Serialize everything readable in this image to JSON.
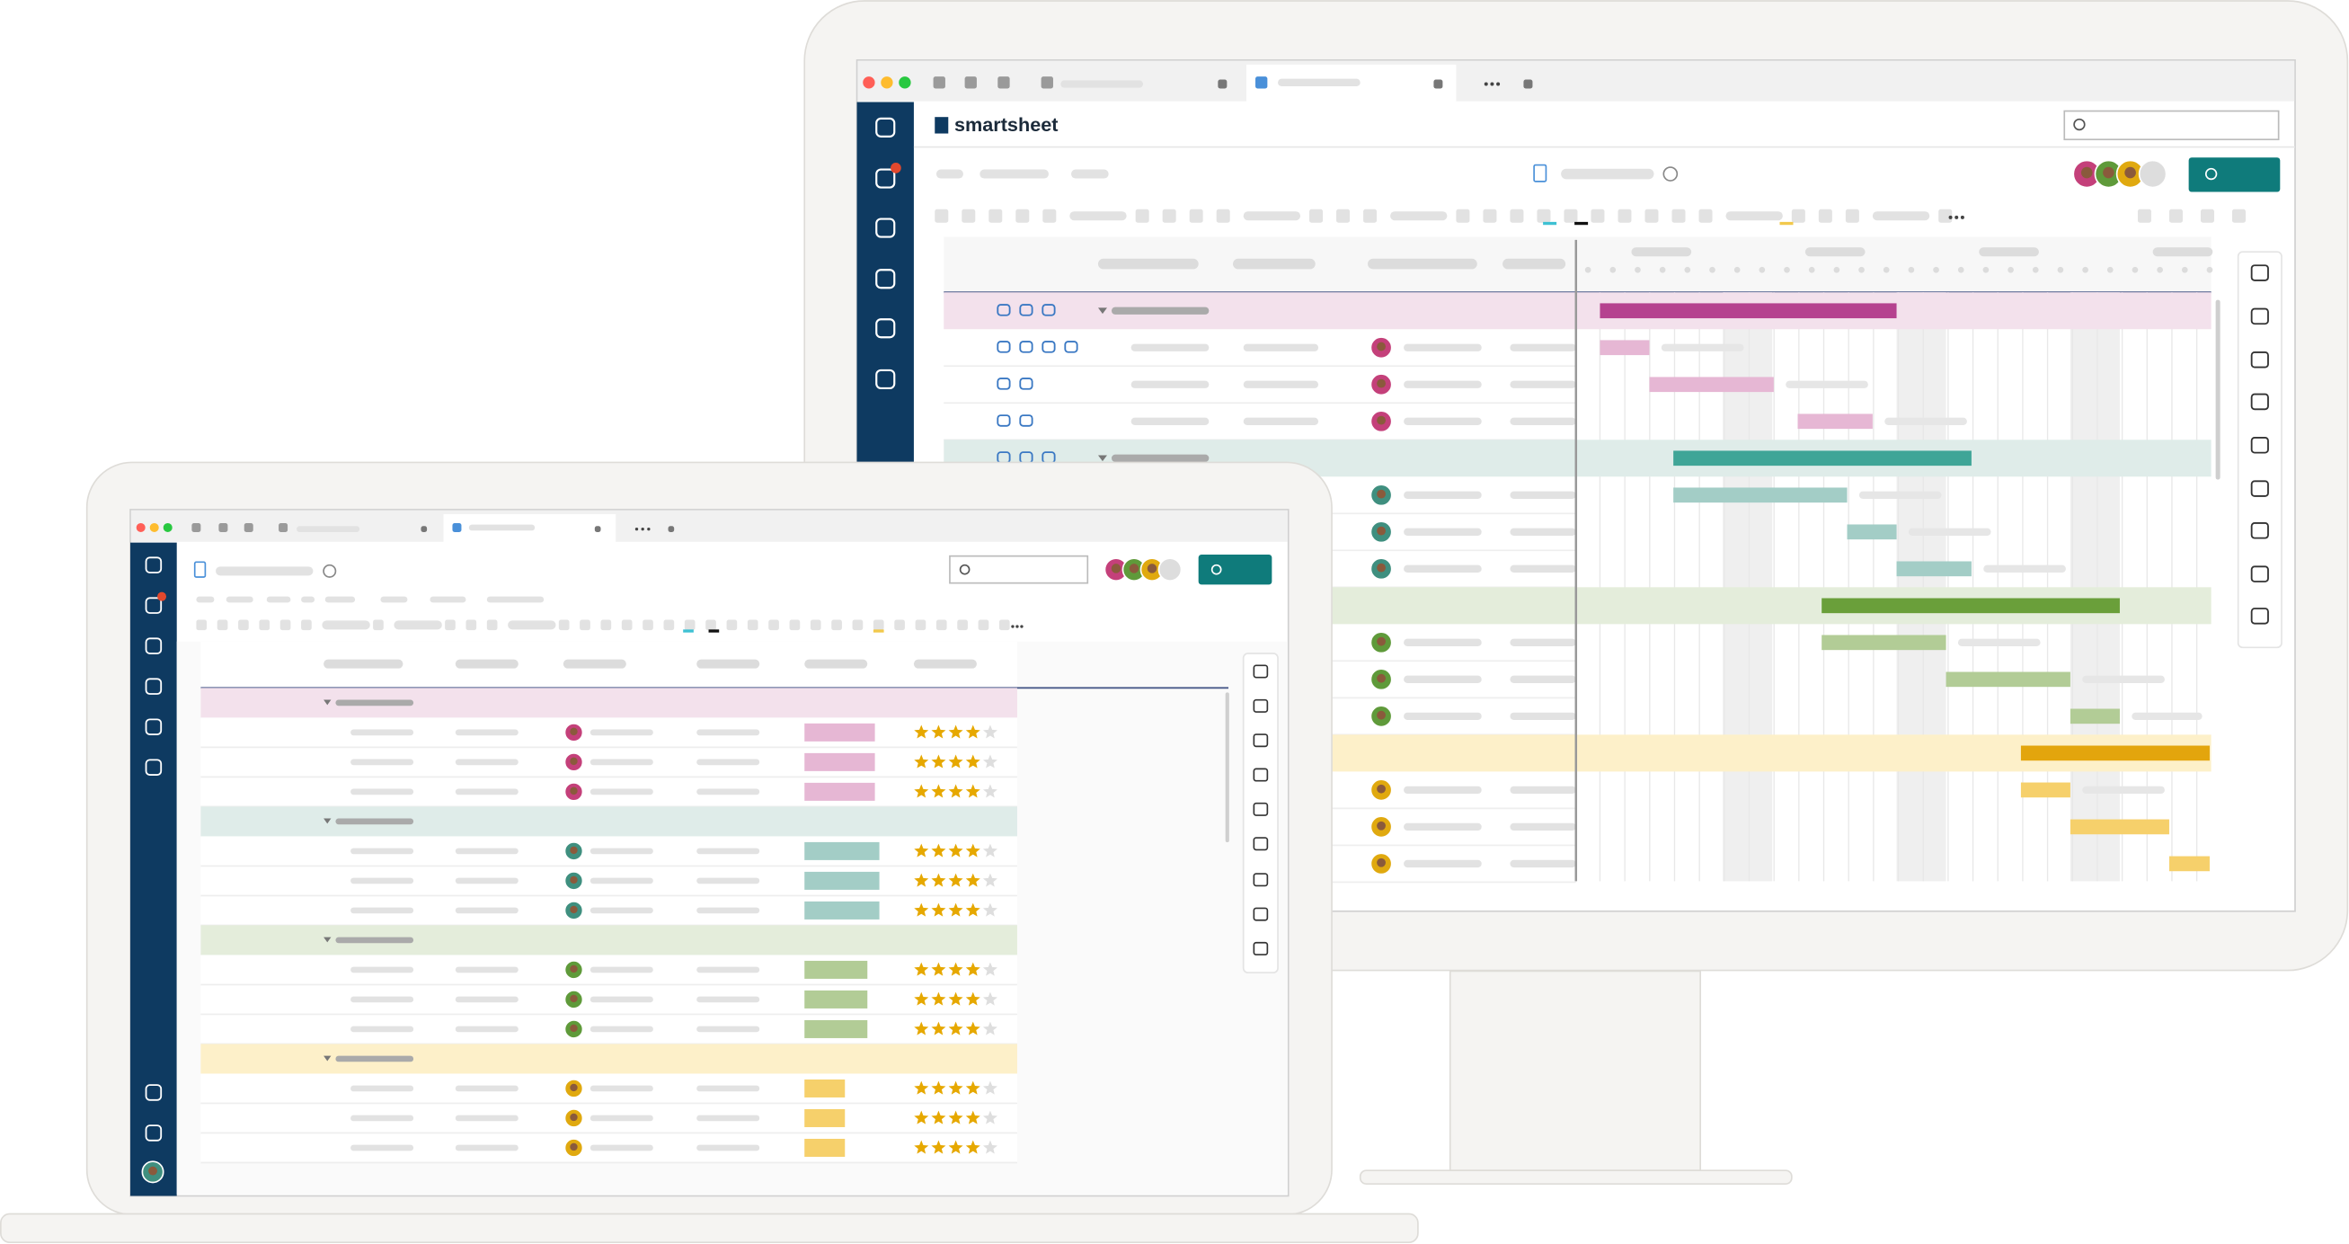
{
  "header": {
    "logo": "smartsheet"
  }
}
